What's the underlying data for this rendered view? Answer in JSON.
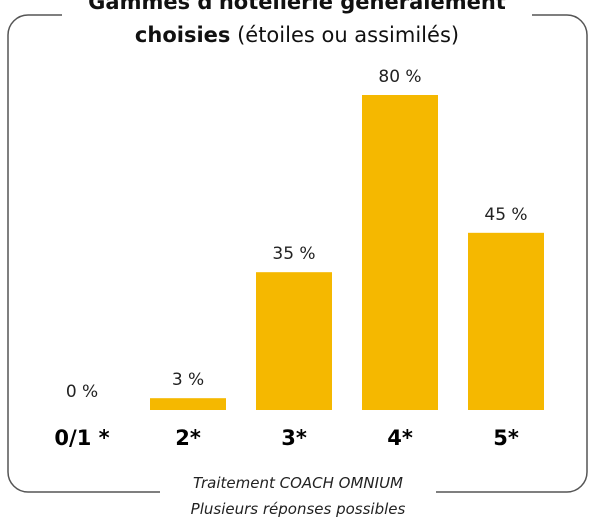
{
  "chart_data": {
    "type": "bar",
    "title": "Gammes d'hôtellerie généralement choisies",
    "subtitle": "(étoiles ou assimilés)",
    "categories": [
      "0/1 *",
      "2*",
      "3*",
      "4*",
      "5*"
    ],
    "values": [
      0,
      3,
      35,
      80,
      45
    ],
    "value_labels": [
      "0 %",
      "3 %",
      "35 %",
      "80 %",
      "45 %"
    ],
    "color": "#f5b800",
    "notes": [
      "Traitement COACH OMNIUM",
      "Plusieurs réponses possibles"
    ]
  }
}
